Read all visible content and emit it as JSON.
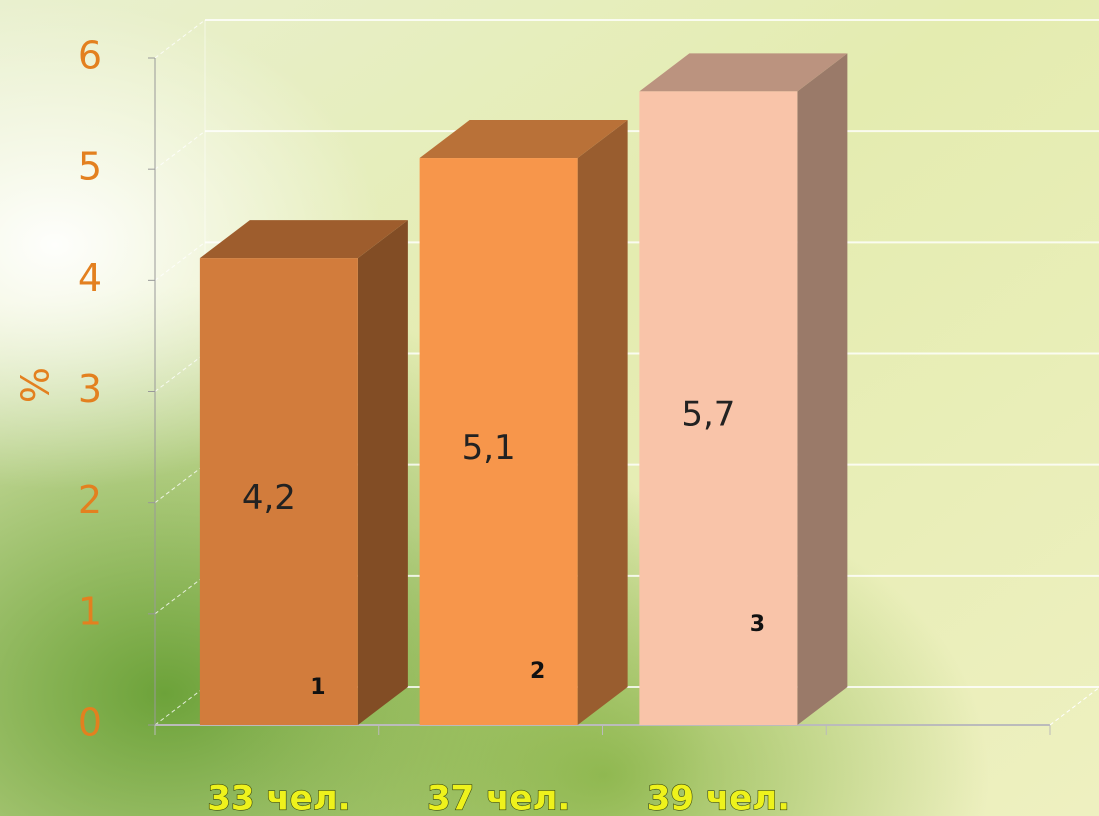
{
  "chart_data": {
    "type": "bar3d",
    "y_label": "%",
    "categories": [
      "33 чел.",
      "37 чел.",
      "39 чел."
    ],
    "values": [
      4.2,
      5.1,
      5.7
    ],
    "value_labels": [
      "4,2",
      "5,1",
      "5,7"
    ],
    "annotations": [
      "1",
      "2",
      "3"
    ],
    "colors": [
      "#d27c3c",
      "#f7964b",
      "#f9c4a9"
    ],
    "ylim": [
      0,
      6
    ],
    "yticks": [
      0,
      1,
      2,
      3,
      4,
      5,
      6
    ],
    "grid": true
  }
}
